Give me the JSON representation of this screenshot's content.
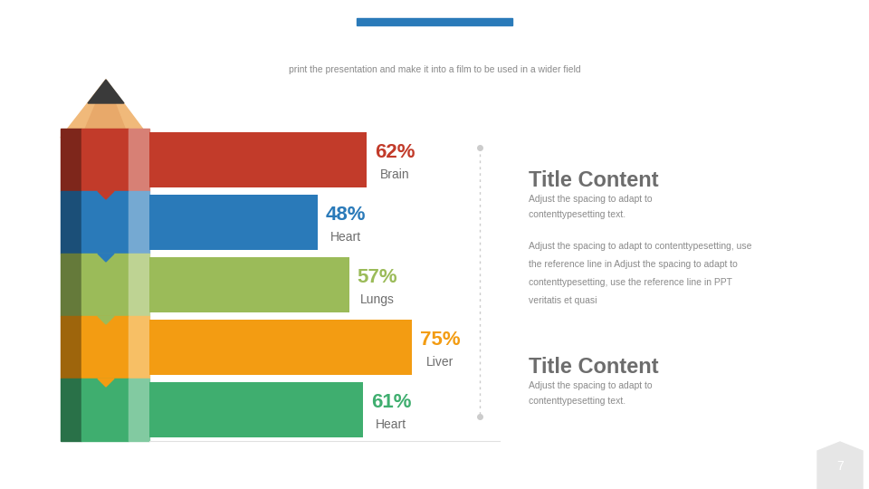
{
  "header": {
    "subtitle": "print the presentation and make it into a film to be used in a wider field"
  },
  "chart_data": {
    "type": "bar",
    "orientation": "horizontal",
    "categories": [
      "Brain",
      "Heart",
      "Lungs",
      "Liver",
      "Heart"
    ],
    "values": [
      62,
      48,
      57,
      75,
      61
    ],
    "value_labels": [
      "62%",
      "48%",
      "57%",
      "75%",
      "61%"
    ],
    "colors": [
      "#c23b2a",
      "#2a7ab9",
      "#9bbb59",
      "#f39c12",
      "#3fae6f"
    ],
    "xlim": [
      0,
      100
    ],
    "data_labels": true,
    "tick_labels": false
  },
  "text_blocks": [
    {
      "title": "Title Content",
      "lines": [
        "Adjust the spacing to adapt to",
        "contenttypesetting text."
      ],
      "paragraph": [
        "Adjust the spacing to adapt to contenttypesetting, use",
        "the reference line in Adjust the spacing to adapt to",
        "contenttypesetting, use the reference line in PPT",
        "veritatis et quasi"
      ]
    },
    {
      "title": "Title Content",
      "lines": [
        "Adjust the spacing to adapt to",
        "contenttypesetting text."
      ]
    }
  ],
  "page_number": 7
}
